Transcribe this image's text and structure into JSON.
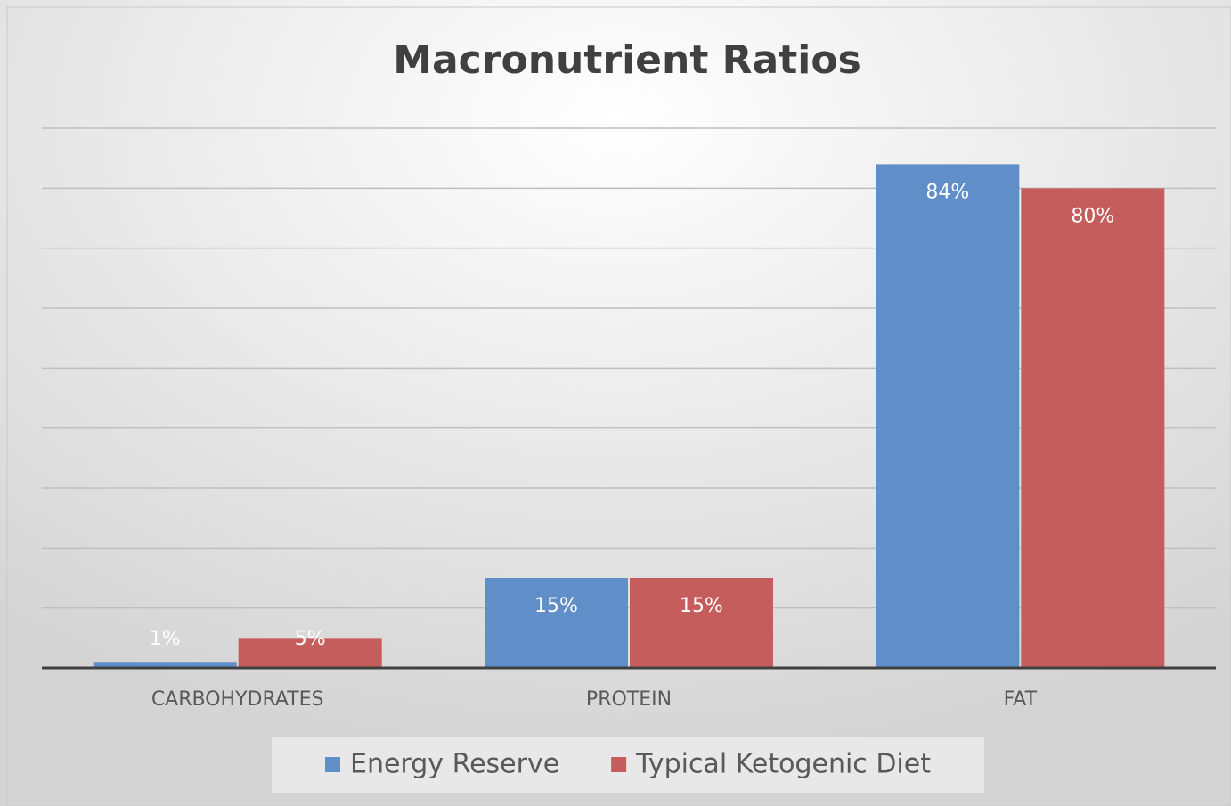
{
  "chart_data": {
    "type": "bar",
    "title": "Macronutrient Ratios",
    "categories": [
      "CARBOHYDRATES",
      "PROTEIN",
      "FAT"
    ],
    "series": [
      {
        "name": "Energy Reserve",
        "color": "#5f8ec8",
        "values": [
          1,
          15,
          84
        ],
        "value_labels": [
          "1%",
          "15%",
          "84%"
        ]
      },
      {
        "name": "Typical Ketogenic Diet",
        "color": "#c65d5d",
        "values": [
          5,
          15,
          80
        ],
        "value_labels": [
          "5%",
          "15%",
          "80%"
        ]
      }
    ],
    "ylim": [
      0,
      90
    ],
    "yticks": [
      0,
      10,
      20,
      30,
      40,
      50,
      60,
      70,
      80,
      90
    ],
    "grid": true,
    "legend": "bottom"
  }
}
